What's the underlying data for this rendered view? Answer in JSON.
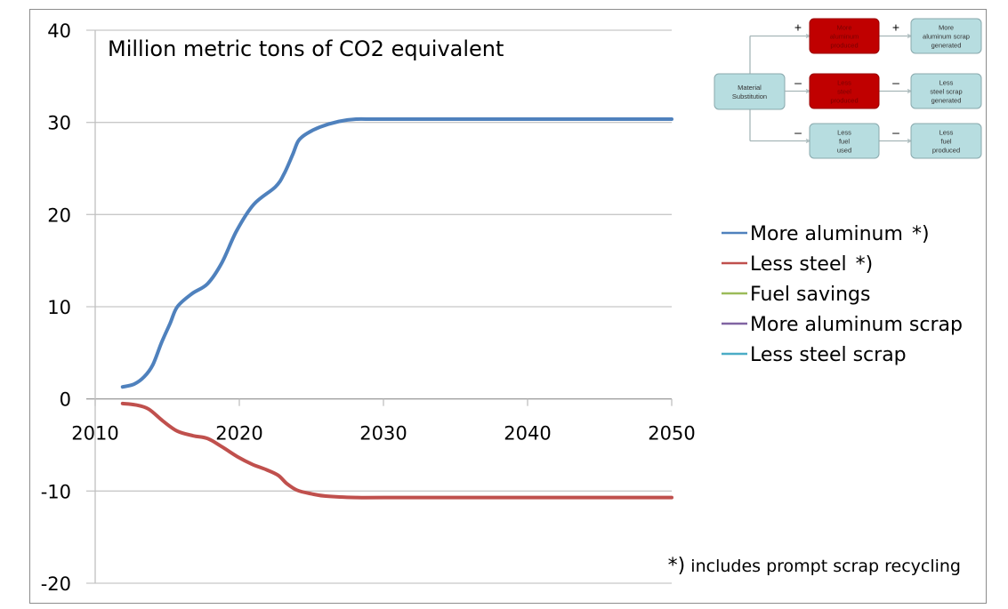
{
  "chart_data": {
    "type": "line",
    "title": "Million metric tons of CO2 equivalent",
    "xlabel": "",
    "ylabel": "",
    "xlim": [
      2010,
      2050
    ],
    "ylim": [
      -20,
      40
    ],
    "x_ticks": [
      2010,
      2020,
      2030,
      2040,
      2050
    ],
    "y_ticks": [
      40,
      30,
      20,
      10,
      0,
      -10,
      -20
    ],
    "grid": "horizontal",
    "legend_position": "right",
    "series": [
      {
        "name": "More aluminum",
        "marker_suffix": "*)",
        "color": "#4f81bd",
        "points": [
          [
            2011.9,
            1.3
          ],
          [
            2012.7,
            1.6
          ],
          [
            2013.4,
            2.4
          ],
          [
            2014.0,
            3.7
          ],
          [
            2014.6,
            6.1
          ],
          [
            2015.2,
            8.2
          ],
          [
            2015.7,
            10.0
          ],
          [
            2016.7,
            11.4
          ],
          [
            2017.8,
            12.5
          ],
          [
            2018.8,
            14.8
          ],
          [
            2019.8,
            18.2
          ],
          [
            2021.0,
            21.1
          ],
          [
            2022.5,
            23.0
          ],
          [
            2023.1,
            24.4
          ],
          [
            2023.7,
            26.5
          ],
          [
            2024.1,
            28.0
          ],
          [
            2024.7,
            28.8
          ],
          [
            2025.6,
            29.5
          ],
          [
            2026.9,
            30.1
          ],
          [
            2028.1,
            30.35
          ],
          [
            2030,
            30.35
          ],
          [
            2040,
            30.35
          ],
          [
            2050,
            30.35
          ]
        ]
      },
      {
        "name": "Less steel",
        "marker_suffix": "*)",
        "color": "#c0504d",
        "points": [
          [
            2011.9,
            -0.5
          ],
          [
            2012.8,
            -0.65
          ],
          [
            2013.7,
            -1.1
          ],
          [
            2014.7,
            -2.4
          ],
          [
            2015.7,
            -3.5
          ],
          [
            2016.8,
            -4.0
          ],
          [
            2017.8,
            -4.3
          ],
          [
            2018.8,
            -5.2
          ],
          [
            2019.9,
            -6.3
          ],
          [
            2020.9,
            -7.1
          ],
          [
            2021.9,
            -7.7
          ],
          [
            2022.7,
            -8.3
          ],
          [
            2023.3,
            -9.2
          ],
          [
            2024.0,
            -9.9
          ],
          [
            2025.0,
            -10.3
          ],
          [
            2026.0,
            -10.55
          ],
          [
            2028.1,
            -10.7
          ],
          [
            2030,
            -10.7
          ],
          [
            2040,
            -10.7
          ],
          [
            2050,
            -10.7
          ]
        ]
      },
      {
        "name": "Fuel savings",
        "marker_suffix": "",
        "color": "#9bbb59",
        "points": []
      },
      {
        "name": "More aluminum scrap",
        "marker_suffix": "",
        "color": "#8064a2",
        "points": []
      },
      {
        "name": "Less steel scrap",
        "marker_suffix": "",
        "color": "#4bacc6",
        "points": []
      }
    ],
    "footnote": {
      "symbol": "*)",
      "text": "includes prompt scrap recycling"
    }
  },
  "diagram": {
    "colors": {
      "highlight_fill": "#c00000",
      "highlight_text": "#7a0000",
      "normal_fill": "#b7dde0",
      "normal_border": "#8aa9ad",
      "connector": "#a6b6b8"
    },
    "source": {
      "lines": [
        "Material",
        "Substitution"
      ]
    },
    "rows": [
      {
        "sign_in": "+",
        "middle": {
          "lines": [
            "More",
            "aluminum",
            "produced"
          ],
          "highlighted": true
        },
        "sign_out": "+",
        "right": {
          "lines": [
            "More",
            "aluminum scrap",
            "generated"
          ],
          "highlighted": false
        }
      },
      {
        "sign_in": "–",
        "middle": {
          "lines": [
            "Less",
            "steel",
            "produced"
          ],
          "highlighted": true
        },
        "sign_out": "–",
        "right": {
          "lines": [
            "Less",
            "steel scrap",
            "generated"
          ],
          "highlighted": false
        }
      },
      {
        "sign_in": "–",
        "middle": {
          "lines": [
            "Less",
            "fuel",
            "used"
          ],
          "highlighted": false
        },
        "sign_out": "–",
        "right": {
          "lines": [
            "Less",
            "fuel",
            "produced"
          ],
          "highlighted": false
        }
      }
    ]
  }
}
